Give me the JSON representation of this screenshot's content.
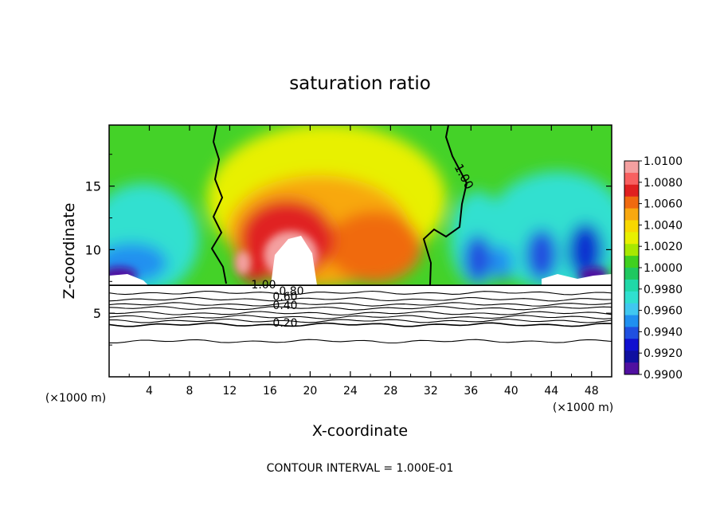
{
  "chart_data": {
    "type": "heatmap",
    "title": "saturation ratio",
    "xlabel": "X-coordinate",
    "ylabel": "Z-coordinate",
    "x_unit_left": "(×1000 m)",
    "x_unit_right": "(×1000 m)",
    "footer": "CONTOUR INTERVAL = 1.000E-01",
    "xlim": [
      0,
      50
    ],
    "ylim": [
      0,
      19.8
    ],
    "x_ticks": [
      4,
      8,
      12,
      16,
      20,
      24,
      28,
      32,
      36,
      40,
      44,
      48
    ],
    "y_ticks": [
      5,
      10,
      15
    ],
    "colorbar": {
      "labels": [
        "1.0100",
        "1.0080",
        "1.0060",
        "1.0040",
        "1.0020",
        "1.0000",
        "0.9980",
        "0.9960",
        "0.9940",
        "0.9920",
        "0.9900"
      ],
      "colors": [
        "#f4a0a0",
        "#f86060",
        "#e02020",
        "#f06a10",
        "#f8a810",
        "#f8d800",
        "#e8f000",
        "#a8e800",
        "#40d020",
        "#20c860",
        "#20d8a8",
        "#30e0d0",
        "#40c8f0",
        "#2090f0",
        "#2050e0",
        "#1010d0",
        "#1010a0",
        "#5010a0"
      ]
    },
    "contour_labels": [
      {
        "text": "1.00",
        "value": 1.0
      },
      {
        "text": "1.00",
        "value": 1.0
      },
      {
        "text": "0.80",
        "value": 0.8
      },
      {
        "text": "0.60",
        "value": 0.6
      },
      {
        "text": "0.40",
        "value": 0.4
      },
      {
        "text": "0.20",
        "value": 0.2
      }
    ],
    "cloud_base_z": 7.2,
    "subsaturated_contours": [
      {
        "value": 0.9,
        "z": 6.6
      },
      {
        "value": 0.8,
        "z": 6.1
      },
      {
        "value": 0.7,
        "z": 5.7
      },
      {
        "value": 0.6,
        "z": 5.4
      },
      {
        "value": 0.5,
        "z": 5.0
      },
      {
        "value": 0.4,
        "z": 4.7
      },
      {
        "value": 0.3,
        "z": 4.4
      },
      {
        "value": 0.2,
        "z": 4.1
      },
      {
        "value": 0.1,
        "z": 2.8
      }
    ]
  }
}
